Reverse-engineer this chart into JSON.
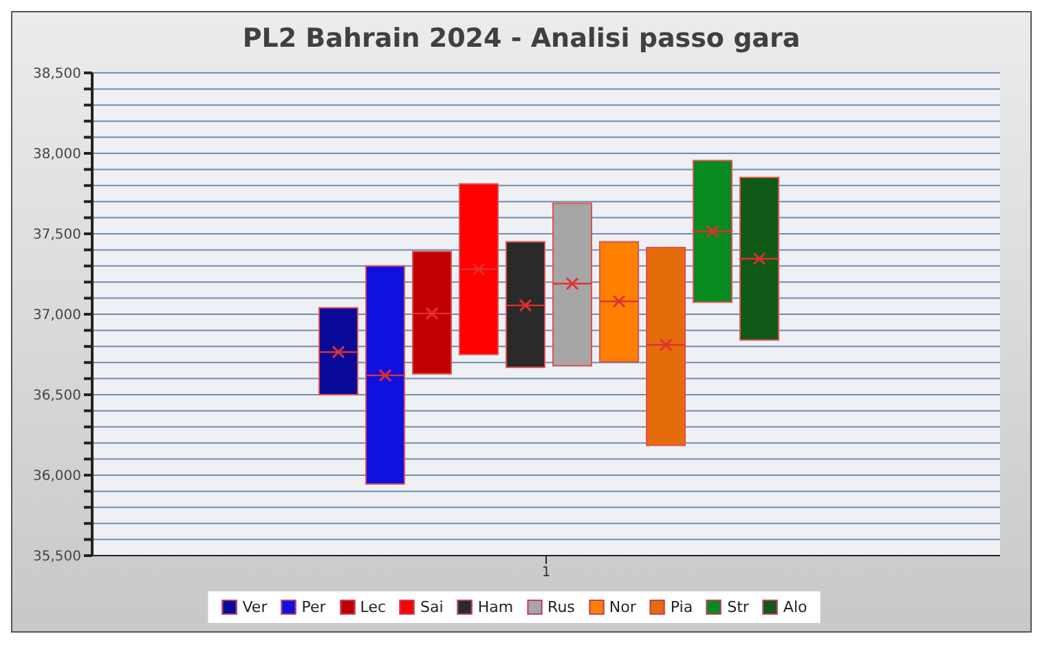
{
  "chart_data": {
    "type": "box",
    "title": "PL2 Bahrain 2024 - Analisi passo gara",
    "categories": [
      "1"
    ],
    "series": [
      {
        "name": "Ver",
        "color": "#0a0a9a",
        "boxes": [
          {
            "low": 36500,
            "q1": 36500,
            "median": 36765,
            "q3": 37040,
            "high": 37040,
            "mean": 36765
          }
        ]
      },
      {
        "name": "Per",
        "color": "#1010e0",
        "boxes": [
          {
            "low": 35945,
            "q1": 35945,
            "median": 36620,
            "q3": 37300,
            "high": 37300,
            "mean": 36620
          }
        ]
      },
      {
        "name": "Lec",
        "color": "#c00000",
        "boxes": [
          {
            "low": 36630,
            "q1": 36630,
            "median": 37005,
            "q3": 37390,
            "high": 37390,
            "mean": 37005
          }
        ]
      },
      {
        "name": "Sai",
        "color": "#ff0000",
        "boxes": [
          {
            "low": 36750,
            "q1": 36750,
            "median": 37280,
            "q3": 37810,
            "high": 37810,
            "mean": 37280
          }
        ]
      },
      {
        "name": "Ham",
        "color": "#2a2a2a",
        "boxes": [
          {
            "low": 36670,
            "q1": 36670,
            "median": 37055,
            "q3": 37450,
            "high": 37450,
            "mean": 37055
          }
        ]
      },
      {
        "name": "Rus",
        "color": "#a6a6a6",
        "boxes": [
          {
            "low": 36680,
            "q1": 36680,
            "median": 37190,
            "q3": 37690,
            "high": 37690,
            "mean": 37190
          }
        ]
      },
      {
        "name": "Nor",
        "color": "#ff8000",
        "boxes": [
          {
            "low": 36705,
            "q1": 36705,
            "median": 37080,
            "q3": 37450,
            "high": 37450,
            "mean": 37080
          }
        ]
      },
      {
        "name": "Pia",
        "color": "#e46c0a",
        "boxes": [
          {
            "low": 36185,
            "q1": 36185,
            "median": 36810,
            "q3": 37415,
            "high": 37415,
            "mean": 36810
          }
        ]
      },
      {
        "name": "Str",
        "color": "#078a1e",
        "boxes": [
          {
            "low": 37075,
            "q1": 37075,
            "median": 37515,
            "q3": 37955,
            "high": 37955,
            "mean": 37515
          }
        ]
      },
      {
        "name": "Alo",
        "color": "#0f5a17",
        "boxes": [
          {
            "low": 36840,
            "q1": 36840,
            "median": 37345,
            "q3": 37850,
            "high": 37850,
            "mean": 37345
          }
        ]
      }
    ],
    "ylim": [
      35500,
      38500
    ],
    "yticks": [
      {
        "value": 35500,
        "label": "35,500"
      },
      {
        "value": 35600,
        "label": null
      },
      {
        "value": 35700,
        "label": null
      },
      {
        "value": 35800,
        "label": null
      },
      {
        "value": 35900,
        "label": null
      },
      {
        "value": 36000,
        "label": "36,000"
      },
      {
        "value": 36100,
        "label": null
      },
      {
        "value": 36200,
        "label": null
      },
      {
        "value": 36300,
        "label": null
      },
      {
        "value": 36400,
        "label": null
      },
      {
        "value": 36500,
        "label": "36,500"
      },
      {
        "value": 36600,
        "label": null
      },
      {
        "value": 36700,
        "label": null
      },
      {
        "value": 36800,
        "label": null
      },
      {
        "value": 36900,
        "label": null
      },
      {
        "value": 37000,
        "label": "37,000"
      },
      {
        "value": 37100,
        "label": null
      },
      {
        "value": 37200,
        "label": null
      },
      {
        "value": 37300,
        "label": null
      },
      {
        "value": 37400,
        "label": null
      },
      {
        "value": 37500,
        "label": "37,500"
      },
      {
        "value": 37600,
        "label": null
      },
      {
        "value": 37700,
        "label": null
      },
      {
        "value": 37800,
        "label": null
      },
      {
        "value": 37900,
        "label": null
      },
      {
        "value": 38000,
        "label": "38,000"
      },
      {
        "value": 38100,
        "label": null
      },
      {
        "value": 38200,
        "label": null
      },
      {
        "value": 38300,
        "label": null
      },
      {
        "value": 38400,
        "label": null
      },
      {
        "value": 38500,
        "label": "38,500"
      }
    ],
    "grid": "y",
    "legend": "bottom",
    "marker": "cross"
  }
}
